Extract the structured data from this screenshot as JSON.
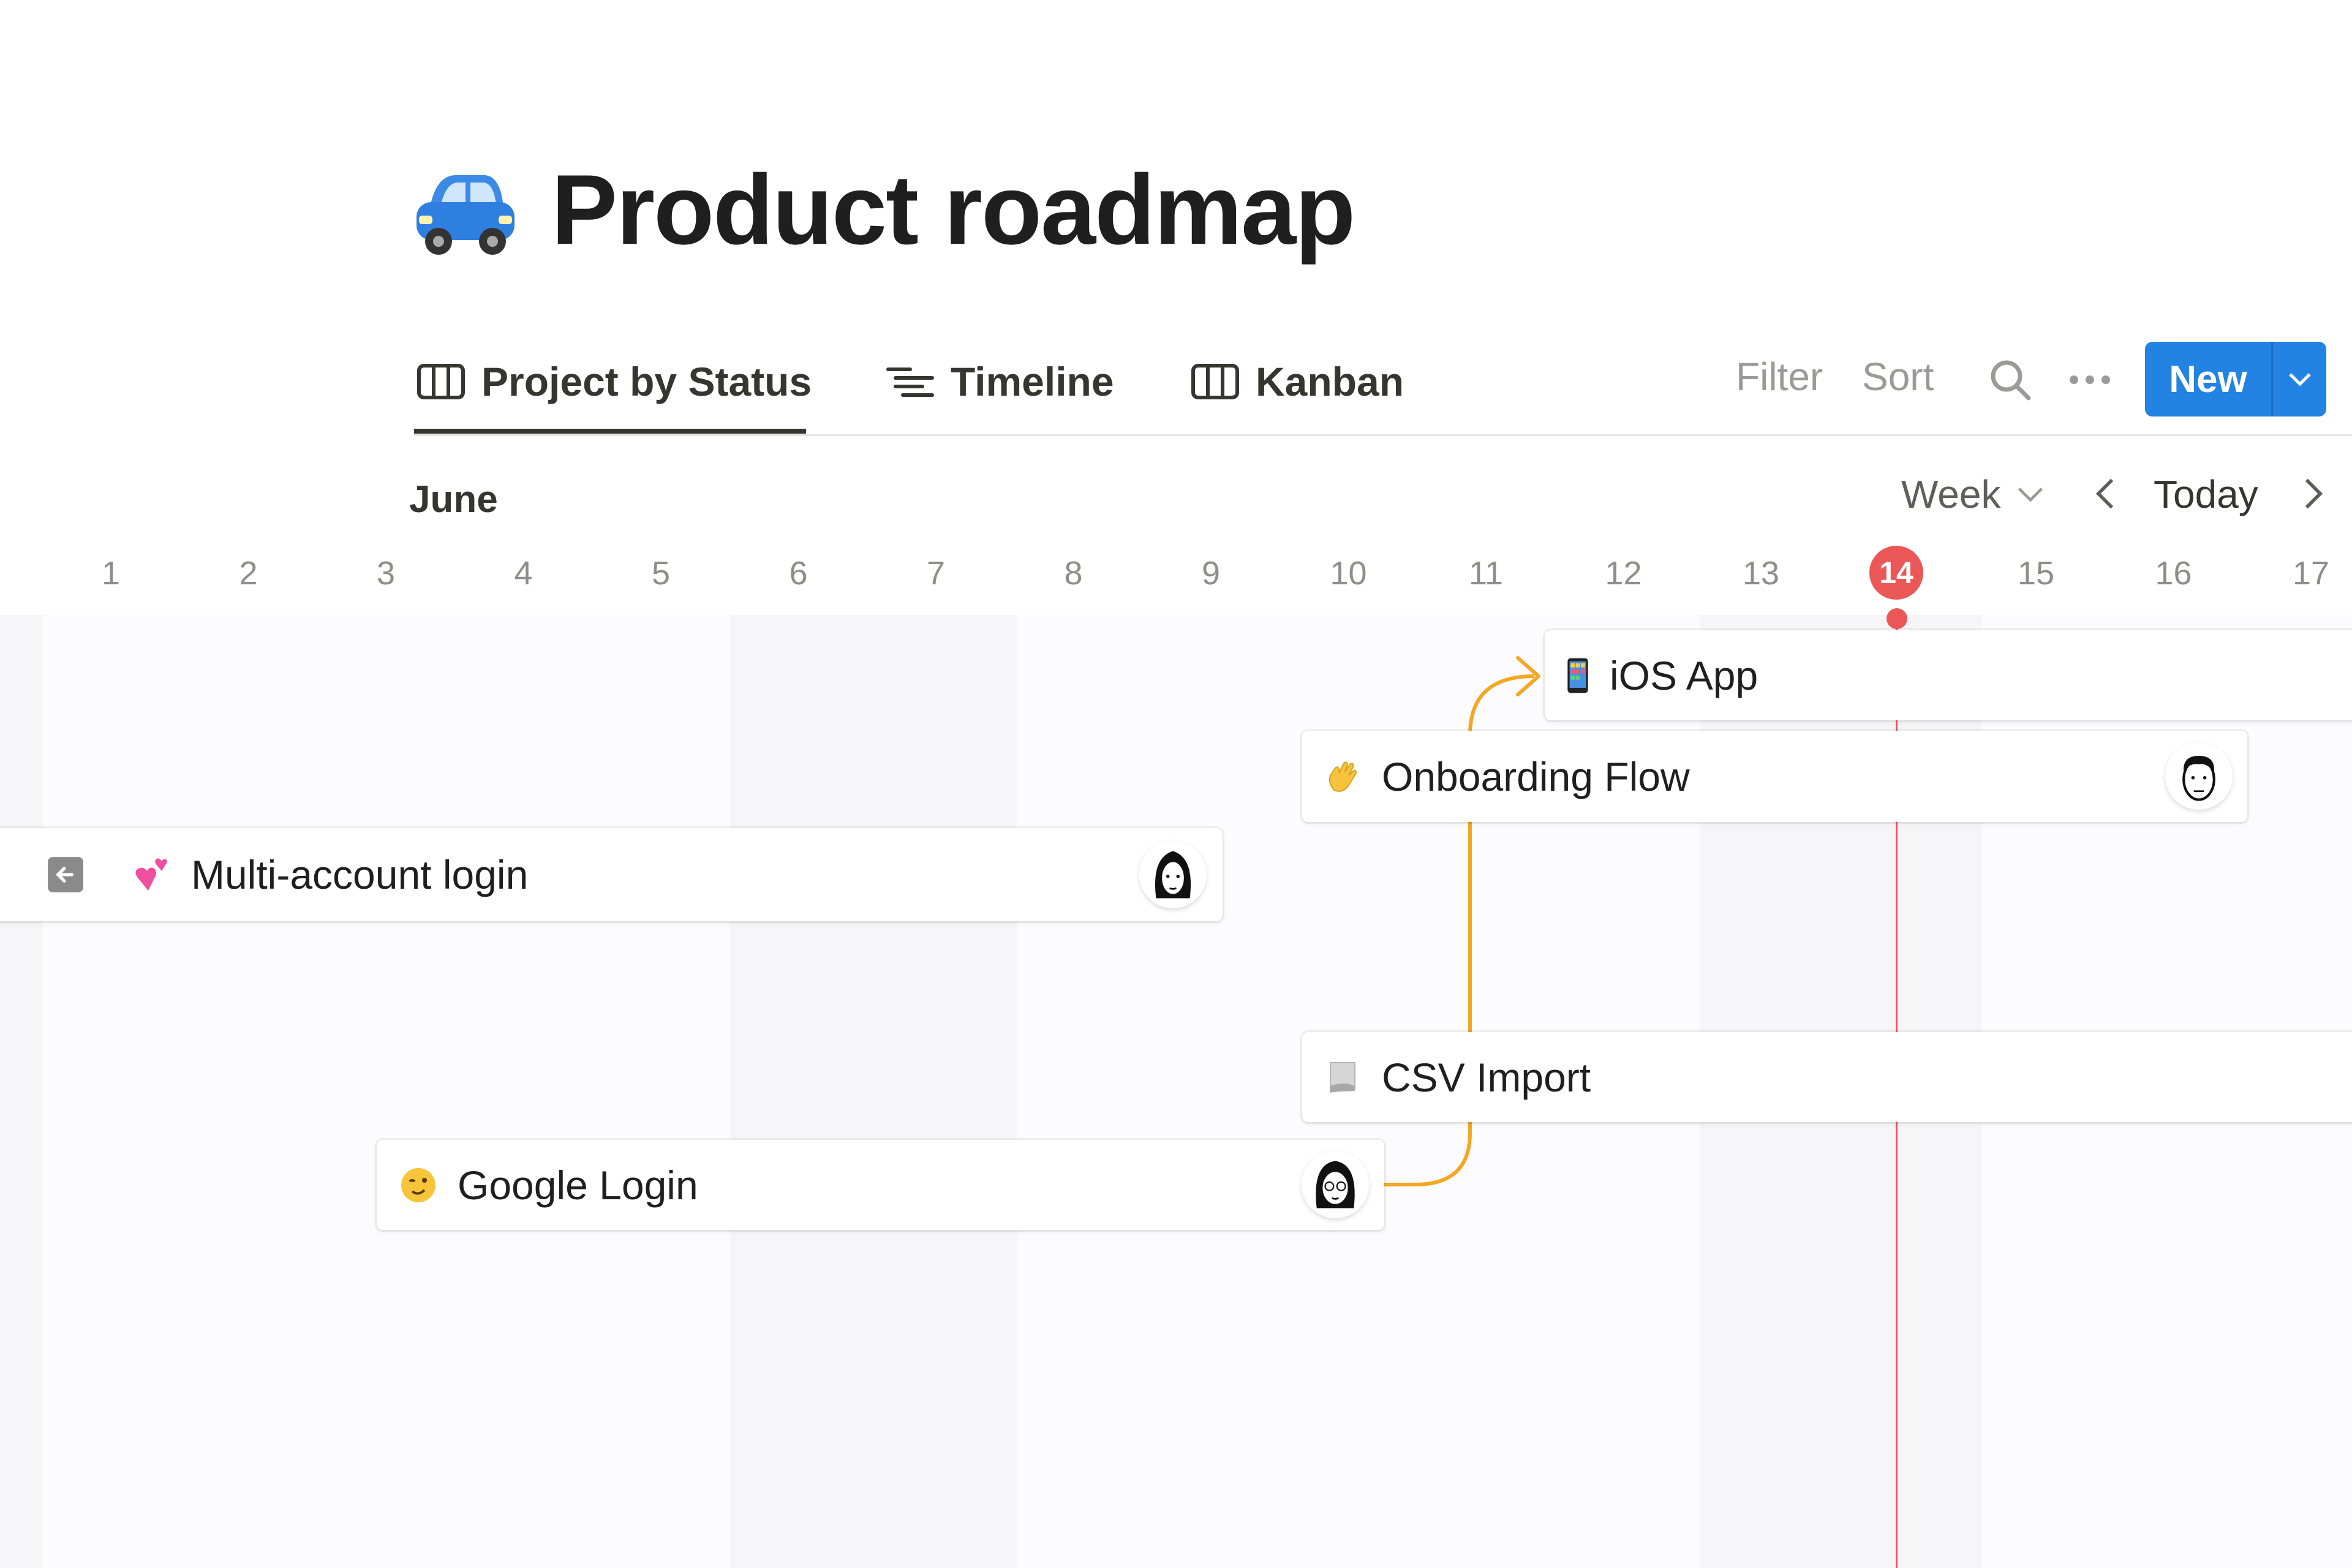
{
  "page": {
    "title": "Product roadmap",
    "icon": "car-emoji"
  },
  "tabs": [
    {
      "label": "Project by Status",
      "icon": "table-columns-icon",
      "active": true
    },
    {
      "label": "Timeline",
      "icon": "timeline-list-icon"
    },
    {
      "label": "Kanban",
      "icon": "board-columns-icon"
    }
  ],
  "toolbar": {
    "filter": "Filter",
    "sort": "Sort",
    "search_icon": "search-icon",
    "more_icon": "ellipsis-icon",
    "new_label": "New",
    "new_color": "#2383e2"
  },
  "timeline": {
    "month": "June",
    "scale": "Week",
    "today_label": "Today",
    "today_day": "14",
    "today_color": "#eb5757",
    "days": [
      "1",
      "2",
      "3",
      "4",
      "5",
      "6",
      "7",
      "8",
      "9",
      "10",
      "11",
      "12",
      "13",
      "14",
      "15",
      "16",
      "17"
    ]
  },
  "items": [
    {
      "name": "iOS App",
      "emoji": "mobile-phone"
    },
    {
      "name": "Onboarding Flow",
      "emoji": "waving-hand"
    },
    {
      "name": "Multi-account login",
      "emoji": "two-hearts"
    },
    {
      "name": "CSV Import",
      "emoji": "page"
    },
    {
      "name": "Google Login",
      "emoji": "winking-face"
    }
  ],
  "dependency_color": "#f5a623"
}
